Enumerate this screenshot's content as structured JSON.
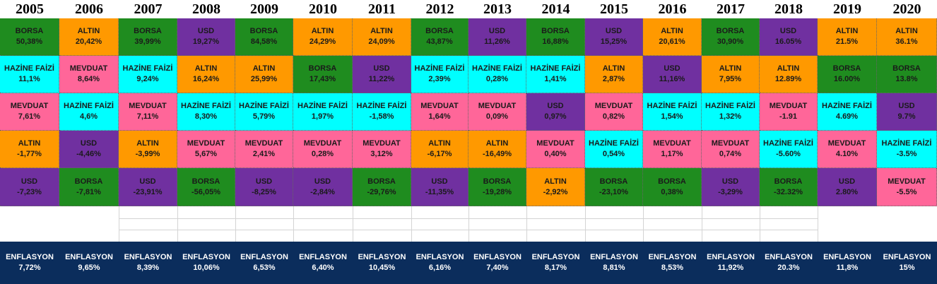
{
  "chart_data": {
    "type": "table",
    "title": "",
    "colors": {
      "BORSA": "#1f8c1f",
      "ALTIN": "#ff9900",
      "USD": "#7030a0",
      "HAZİNE FAİZİ": "#00ffff",
      "MEVDUAT": "#ff6699",
      "inflation_band": "#0b2d5c"
    },
    "years": [
      {
        "year": "2005",
        "rows": [
          {
            "asset": "BORSA",
            "value": "50,38%"
          },
          {
            "asset": "HAZİNE FAİZİ",
            "value": "11,1%"
          },
          {
            "asset": "MEVDUAT",
            "value": "7,61%"
          },
          {
            "asset": "ALTIN",
            "value": "-1,77%"
          },
          {
            "asset": "USD",
            "value": "-7,23%"
          }
        ],
        "inflation_label": "ENFLASYON",
        "inflation": "7,72%"
      },
      {
        "year": "2006",
        "rows": [
          {
            "asset": "ALTIN",
            "value": "20,42%"
          },
          {
            "asset": "MEVDUAT",
            "value": "8,64%"
          },
          {
            "asset": "HAZİNE FAİZİ",
            "value": "4,6%"
          },
          {
            "asset": "USD",
            "value": "-4,46%"
          },
          {
            "asset": "BORSA",
            "value": "-7,81%"
          }
        ],
        "inflation_label": "ENFLASYON",
        "inflation": "9,65%"
      },
      {
        "year": "2007",
        "rows": [
          {
            "asset": "BORSA",
            "value": "39,99%"
          },
          {
            "asset": "HAZİNE FAİZİ",
            "value": "9,24%"
          },
          {
            "asset": "MEVDUAT",
            "value": "7,11%"
          },
          {
            "asset": "ALTIN",
            "value": "-3,99%"
          },
          {
            "asset": "USD",
            "value": "-23,91%"
          }
        ],
        "inflation_label": "ENFLASYON",
        "inflation": "8,39%"
      },
      {
        "year": "2008",
        "rows": [
          {
            "asset": "USD",
            "value": "19,27%"
          },
          {
            "asset": "ALTIN",
            "value": "16,24%"
          },
          {
            "asset": "HAZİNE FAİZİ",
            "value": "8,30%"
          },
          {
            "asset": "MEVDUAT",
            "value": "5,67%"
          },
          {
            "asset": "BORSA",
            "value": "-56,05%"
          }
        ],
        "inflation_label": "ENFLASYON",
        "inflation": "10,06%"
      },
      {
        "year": "2009",
        "rows": [
          {
            "asset": "BORSA",
            "value": "84,58%"
          },
          {
            "asset": "ALTIN",
            "value": "25,99%"
          },
          {
            "asset": "HAZİNE FAİZİ",
            "value": "5,79%"
          },
          {
            "asset": "MEVDUAT",
            "value": "2,41%"
          },
          {
            "asset": "USD",
            "value": "-8,25%"
          }
        ],
        "inflation_label": "ENFLASYON",
        "inflation": "6,53%"
      },
      {
        "year": "2010",
        "rows": [
          {
            "asset": "ALTIN",
            "value": "24,29%"
          },
          {
            "asset": "BORSA",
            "value": "17,43%"
          },
          {
            "asset": "HAZİNE FAİZİ",
            "value": "1,97%"
          },
          {
            "asset": "MEVDUAT",
            "value": "0,28%"
          },
          {
            "asset": "USD",
            "value": "-2,84%"
          }
        ],
        "inflation_label": "ENFLASYON",
        "inflation": "6,40%"
      },
      {
        "year": "2011",
        "rows": [
          {
            "asset": "ALTIN",
            "value": "24,09%"
          },
          {
            "asset": "USD",
            "value": "11,22%"
          },
          {
            "asset": "HAZİNE FAİZİ",
            "value": "-1,58%"
          },
          {
            "asset": "MEVDUAT",
            "value": "3,12%"
          },
          {
            "asset": "BORSA",
            "value": "-29,76%"
          }
        ],
        "inflation_label": "ENFLASYON",
        "inflation": "10,45%"
      },
      {
        "year": "2012",
        "rows": [
          {
            "asset": "BORSA",
            "value": "43,87%"
          },
          {
            "asset": "HAZİNE FAİZİ",
            "value": "2,39%"
          },
          {
            "asset": "MEVDUAT",
            "value": "1,64%"
          },
          {
            "asset": "ALTIN",
            "value": "-6,17%"
          },
          {
            "asset": "USD",
            "value": "-11,35%"
          }
        ],
        "inflation_label": "ENFLASYON",
        "inflation": "6,16%"
      },
      {
        "year": "2013",
        "rows": [
          {
            "asset": "USD",
            "value": "11,26%"
          },
          {
            "asset": "HAZİNE FAİZİ",
            "value": "0,28%"
          },
          {
            "asset": "MEVDUAT",
            "value": "0,09%"
          },
          {
            "asset": "ALTIN",
            "value": "-16,49%"
          },
          {
            "asset": "BORSA",
            "value": "-19,28%"
          }
        ],
        "inflation_label": "ENFLASYON",
        "inflation": "7,40%"
      },
      {
        "year": "2014",
        "rows": [
          {
            "asset": "BORSA",
            "value": "16,88%"
          },
          {
            "asset": "HAZİNE FAİZİ",
            "value": "1,41%"
          },
          {
            "asset": "USD",
            "value": "0,97%"
          },
          {
            "asset": "MEVDUAT",
            "value": "0,40%"
          },
          {
            "asset": "ALTIN",
            "value": "-2,92%"
          }
        ],
        "inflation_label": "ENFLASYON",
        "inflation": "8,17%"
      },
      {
        "year": "2015",
        "rows": [
          {
            "asset": "USD",
            "value": "15,25%"
          },
          {
            "asset": "ALTIN",
            "value": "2,87%"
          },
          {
            "asset": "MEVDUAT",
            "value": "0,82%"
          },
          {
            "asset": "HAZİNE FAİZİ",
            "value": "0,54%"
          },
          {
            "asset": "BORSA",
            "value": "-23,10%"
          }
        ],
        "inflation_label": "ENFLASYON",
        "inflation": "8,81%"
      },
      {
        "year": "2016",
        "rows": [
          {
            "asset": "ALTIN",
            "value": "20,61%"
          },
          {
            "asset": "USD",
            "value": "11,16%"
          },
          {
            "asset": "HAZİNE FAİZİ",
            "value": "1,54%"
          },
          {
            "asset": "MEVDUAT",
            "value": "1,17%"
          },
          {
            "asset": "BORSA",
            "value": "0,38%"
          }
        ],
        "inflation_label": "ENFLASYON",
        "inflation": "8,53%"
      },
      {
        "year": "2017",
        "rows": [
          {
            "asset": "BORSA",
            "value": "30,90%"
          },
          {
            "asset": "ALTIN",
            "value": "7,95%"
          },
          {
            "asset": "HAZİNE FAİZİ",
            "value": "1,32%"
          },
          {
            "asset": "MEVDUAT",
            "value": "0,74%"
          },
          {
            "asset": "USD",
            "value": "-3,29%"
          }
        ],
        "inflation_label": "ENFLASYON",
        "inflation": "11,92%"
      },
      {
        "year": "2018",
        "rows": [
          {
            "asset": "USD",
            "value": "16.05%"
          },
          {
            "asset": "ALTIN",
            "value": "12.89%"
          },
          {
            "asset": "MEVDUAT",
            "value": "-1.91"
          },
          {
            "asset": "HAZİNE FAİZİ",
            "value": "-5.60%"
          },
          {
            "asset": "BORSA",
            "value": "-32.32%"
          }
        ],
        "inflation_label": "ENFLASYON",
        "inflation": "20.3%"
      },
      {
        "year": "2019",
        "rows": [
          {
            "asset": "ALTIN",
            "value": "21.5%"
          },
          {
            "asset": "BORSA",
            "value": "16.00%"
          },
          {
            "asset": "HAZİNE FAİZİ",
            "value": "4.69%"
          },
          {
            "asset": "MEVDUAT",
            "value": "4.10%"
          },
          {
            "asset": "USD",
            "value": "2.80%"
          }
        ],
        "inflation_label": "ENFLASYON",
        "inflation": "11,8%"
      },
      {
        "year": "2020",
        "rows": [
          {
            "asset": "ALTIN",
            "value": "36.1%"
          },
          {
            "asset": "BORSA",
            "value": "13.8%"
          },
          {
            "asset": "USD",
            "value": "9.7%"
          },
          {
            "asset": "HAZİNE FAİZİ",
            "value": "-3.5%"
          },
          {
            "asset": "MEVDUAT",
            "value": "-5.5%"
          }
        ],
        "inflation_label": "ENFLASYON",
        "inflation": "15%"
      }
    ]
  }
}
